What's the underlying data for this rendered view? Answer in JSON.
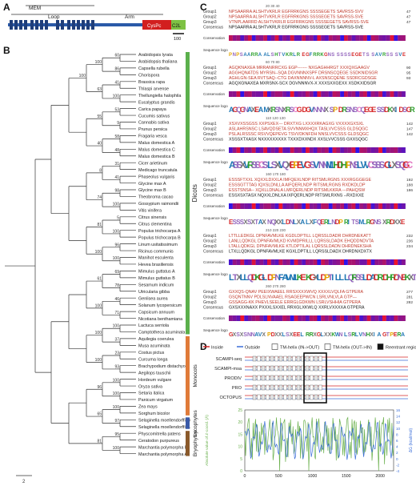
{
  "panel_labels": {
    "a": "A",
    "b": "B",
    "c": "C",
    "d": "D"
  },
  "panel_a": {
    "domain_mem": "MEM",
    "domain_loop": "Loop",
    "domain_arm": "Arm",
    "domain_cys": "CysPc",
    "domain_c2l": "C2L",
    "scale": "100",
    "colors": {
      "tm": "#1f3e7a",
      "cys": "#d21f1f",
      "c2l": "#7ec244",
      "backbone": "#2a5aa8"
    }
  },
  "panel_b": {
    "taxa": [
      "Arabidopsis lyrata",
      "Arabidopsis thaliana",
      "Capsella rubella",
      "Chorispora",
      "Brassica rapa",
      "Thlaspi arvense",
      "Thellungiella halophila",
      "Eucalyptus grandis",
      "Carica papaya",
      "Cucumis sativus",
      "Cannabis sativa",
      "Prunus persica",
      "Fragaria vesca",
      "Malus domestica A",
      "Malus domestica C",
      "Malus domestica B",
      "Cicer arietinum",
      "Medicago truncatula",
      "Phaseolus vulgaris",
      "Glycine max A",
      "Glycine max B",
      "Theobroma cacao",
      "Gossypium raimondii",
      "Vitis vinifera",
      "Citrus sinensis",
      "Citrus clementina",
      "Populus trichocarpa A",
      "Populus trichocarpa B",
      "Linum usitatissimum",
      "Ricinus communis",
      "Manihot esculenta",
      "Hevea brasiliensis",
      "Mimulus guttatus A",
      "Mimulus guttatus B",
      "Sesamum indicum",
      "Utricularia gibba",
      "Genlisea aurea",
      "Solanum lycopersicum",
      "Capsicum annuum",
      "Nicotiana benthamiana",
      "Lactuca serriola",
      "Camptotheca acuminata",
      "Aquilegia coerulea",
      "Musa acuminata",
      "Costus pictus",
      "Curcuma longa",
      "Brachypodium distachyon",
      "Aegilops tauschii",
      "Hordeum vulgare",
      "Oryza sativa",
      "Setaria italica",
      "Panicum virgatum",
      "Zea mays",
      "Sorghum bicolor",
      "Selaginella moellendorffii B",
      "Selaginella moellendorffii A",
      "Physcomitrella patens",
      "Ceratodon purpureus",
      "Marchantia polymorpha B",
      "Marchantia polymorpha A"
    ],
    "bootstrap": [
      "60",
      "86",
      "41",
      "100",
      "53",
      "9",
      "58",
      "48",
      "31",
      "41",
      "98",
      "100",
      "5",
      "100",
      "96",
      "100",
      "69",
      "78",
      "46",
      "71",
      "100",
      "37",
      "23",
      "93",
      "100",
      "100",
      "100",
      "97",
      "95",
      "100",
      "100",
      "63",
      "55",
      "40",
      "8",
      "74",
      "81",
      "100",
      "61",
      "100",
      "100",
      "100",
      "96",
      "65",
      "81",
      "100"
    ],
    "groups": [
      {
        "label": "Dicots",
        "color": "#5bb04c"
      },
      {
        "label": "Monocots",
        "color": "#e07b39"
      },
      {
        "label": "Lycophytes",
        "color": "#3a5aa8"
      },
      {
        "label": "Bryophytes",
        "color": "#8b5a2b"
      }
    ],
    "scale": "2"
  },
  "panel_c": {
    "row_labels": [
      "Group1",
      "Group2",
      "Group3",
      "Consensus"
    ],
    "track_conservation": "Conservation",
    "track_logo": "Sequence logo",
    "blocks": [
      {
        "ruler": "20 30 40",
        "rows": [
          "NPSAARRA ALSHTVKRLR EGFRRKGNS SSSSEGETS SAVRSS-SVV",
          "NPSAARRA ALSHTVKRLR EGFRRKGNS SSSSEGETS SAVRSS-SVE",
          "VTNPLAARRD ALSHTVKRLR EGFRRKGNS SSSSEGETS SAVRSS-SVE",
          "NPSAARRA ALSHTVKRLR EGFRRKGNS SSSSEGETS SAVRSS-SVE"
        ],
        "ends": [
          "47",
          "47",
          "47",
          ""
        ],
        "logo": "PNPSAARRA ALSHTVKRLR EGFRRKGNS SSSSEGETS SAVRSS SVE"
      },
      {
        "ruler": "60 70 80",
        "rows": [
          "AGQKNAXEA MRRANRRCXG EGP------- NXGAGHHRGT XXXQXGAAGV",
          "AGGHQNATDS MYRSN--SQA DGVNNNXSPF DRSNSCQEGE SSDKNIDSGR",
          "AGHLGN-SEA RVTSAQ--CTG DAXNNNNV-L AXSNSCQENE SSDRCGDSGE",
          "AGQXGNAXEA MXRSNX-SCX DGVNNNVX-X XXXSXXGEXX XSDKXIDSGR"
        ],
        "ends": [
          "90",
          "95",
          "93",
          ""
        ],
        "logo": "AGQGNAXEA MXRSNXRSCG DGVNNNX SP DRSNSCQEGE SSDKXIDSGR"
      },
      {
        "ruler": "110 120 130",
        "rows": [
          "XSXVXSSGSS XXPSXEX--- DRXTXG LXXXXRKAGXG VXXXXGXSXL",
          "ASLAHRSNSC LSAVQDSETA SVVNNMXHQX TASLVVCSSS GLDSQGC",
          "PSLALRSSSC RSVVQEPEVG TSVVDKNFDH NNSLVVCSSS GLDSQGC",
          "XSSSXTXASX NXXXXXXXXX TXXXDXXNDX XXSLVVCSSS GXXSQGC"
        ],
        "ends": [
          "142",
          "147",
          "142",
          ""
        ],
        "logo": "ASSXVRSSCS LSXVQXEPEVG SV NNMLHDH PNSLVVCSSS GLXSQGC"
      },
      {
        "ruler": "160 170 180",
        "rows": [
          "ESSSFTXXL XQXXLDXXLA IMFQEXLNDP RITSMLRGNS XXXRGGGEGE",
          "ESSSGTTTAG IQXSLDNLLA AIFQERLNDP RITSMLRGNS RXDKDLDP",
          "ESSTSNSA-- XQXLLDNALA LMFQERLNDP RITSMLKKRA ---PAHQSW",
          "ESSXSXTASX NQXXLDNLXA IXFQERLNDP RITSMLRXNS --RXDXXE"
        ],
        "ends": [
          "192",
          "188",
          "186",
          ""
        ],
        "logo": "ESSSXSXTAX NQXXLDNLXA LXFQERLNDP RITSMLRGNS XRDXXE"
      },
      {
        "ruler": "210 220 230",
        "rows": [
          "LTTLLEDKGL DPNFAVMLKE KGDLDPTILL LQRSSLDADR DHRDNEKATT",
          "LANLLQDKGL DPNFAVMLKD KVMDPRILLL LQRSSLDADK EHQDDNDVTA",
          "LTALLQDKGL DPNFAVMLKE KTLDPTILAL LQRSSLDADN DHRDNEKSHA",
          "LTXLLQDKGL DPNFAVMLKE KGXLDPTILL LQRSSLDADX DHRDNXDXTX"
        ],
        "ends": [
          "232",
          "236",
          "234",
          ""
        ],
        "logo": "LTXLLQDKGL DPNFAVMLKE KGXLDPTILL LQRSSLDADR DHRDNEKXTA"
      },
      {
        "ruler": "260 270 280",
        "rows": [
          "GXXQS-QNAV PEEIXWAEEL RRSXXXXWVQ XXXXLVQLFA GTPERA",
          "GSQNTNNV PDLSLNVAAEL RSAGEEPWCN LSRLVNLVLA GTP---",
          "GSSAGG-KK PHEVLSEELE ERRGLGDKWN LSRLVSHHIA GTPERA",
          "GXSXXXNAXX PXXXLSXXEL RRXGLXKWLQ XXRLVXXXXA GTPERA"
        ],
        "ends": [
          "277",
          "281",
          "282",
          ""
        ],
        "logo": "GXSXSNNAVX PDXXLSXEEL RRXGLXXKWN LSRLVNHXIA GTPERA"
      }
    ]
  },
  "panel_d": {
    "legend": [
      {
        "label": "Inside",
        "swatch": "line",
        "color": "#d62728"
      },
      {
        "label": "Outside",
        "swatch": "line",
        "color": "#3b6ed8"
      },
      {
        "label": "TM-helix (IN->OUT)",
        "swatch": "box",
        "color": "#ffffff"
      },
      {
        "label": "TM-helix (OUT->IN)",
        "swatch": "box",
        "color": "#ffffff"
      },
      {
        "label": "Reentrant region",
        "swatch": "box",
        "color": "#111111"
      }
    ],
    "tracks": [
      "SCAMPI-seq",
      "SCAMPI-msa",
      "PRODIV",
      "PRO",
      "OCTOPUS"
    ],
    "left_axis_label": "Absolute value of Z-coord. (Å)",
    "right_axis_label": "ΔG (kcal/mol)",
    "left_ticks": [
      "0",
      "5",
      "10",
      "15",
      "20",
      "25"
    ],
    "right_ticks": [
      "-4",
      "-2",
      "0",
      "2",
      "4",
      "6",
      "8",
      "10",
      "12",
      "14",
      "16"
    ],
    "x_ticks": [
      "0",
      "500",
      "1000",
      "1500",
      "2000"
    ],
    "colors": {
      "zcoord": "#6ab04c",
      "dg": "#3b6ed8"
    }
  },
  "chart_data": {
    "type": "line",
    "xlim": [
      0,
      2200
    ],
    "x_ticks": [
      0,
      500,
      1000,
      1500,
      2000
    ],
    "series": [
      {
        "axis": "left",
        "ylim": [
          0,
          25
        ],
        "pattern": "high values near 25 with frequent deep dips; dense spiky profile"
      },
      {
        "axis": "right",
        "ylim": [
          -4,
          16
        ],
        "pattern": "fluctuating profile mostly between 2 and 10 with peaks near 14"
      }
    ]
  }
}
